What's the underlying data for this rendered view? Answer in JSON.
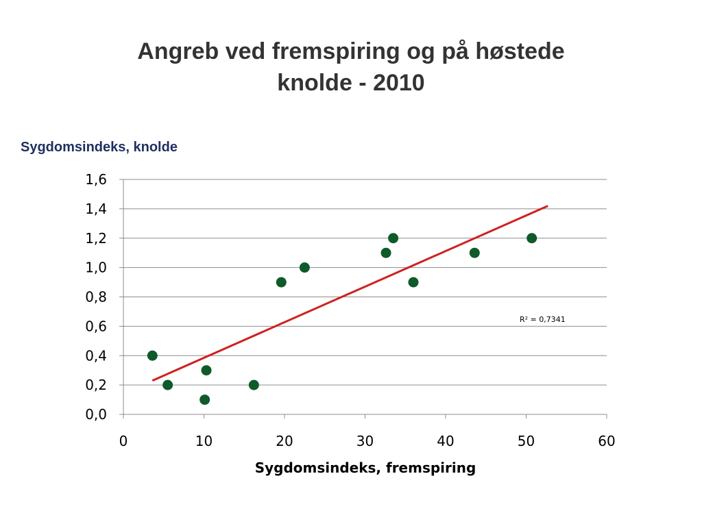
{
  "title": {
    "line1": "Angreb ved fremspiring og på høstede",
    "line2": "knolde  - 2010"
  },
  "chart_data": {
    "type": "scatter",
    "xlabel": "Sygdomsindeks, fremspiring",
    "ylabel": "Sygdomsindeks, knolde",
    "xlim": [
      0,
      60
    ],
    "ylim": [
      0,
      1.6
    ],
    "x_ticks": [
      0,
      10,
      20,
      30,
      40,
      50,
      60
    ],
    "x_tick_labels": [
      "0",
      "10",
      "20",
      "30",
      "40",
      "50",
      "60"
    ],
    "y_ticks": [
      0,
      0.2,
      0.4,
      0.6,
      0.8,
      1.0,
      1.2,
      1.4,
      1.6
    ],
    "y_tick_labels": [
      "0,0",
      "0,2",
      "0,4",
      "0,6",
      "0,8",
      "1,0",
      "1,2",
      "1,4",
      "1,6"
    ],
    "grid": "horizontal",
    "series": [
      {
        "color": "#0f5a2a",
        "points": [
          {
            "x": 3.6,
            "y": 0.4
          },
          {
            "x": 5.5,
            "y": 0.2
          },
          {
            "x": 10.1,
            "y": 0.1
          },
          {
            "x": 10.3,
            "y": 0.3
          },
          {
            "x": 16.2,
            "y": 0.2
          },
          {
            "x": 19.6,
            "y": 0.9
          },
          {
            "x": 22.5,
            "y": 1.0
          },
          {
            "x": 32.6,
            "y": 1.1
          },
          {
            "x": 33.5,
            "y": 1.2
          },
          {
            "x": 36.0,
            "y": 0.9
          },
          {
            "x": 43.6,
            "y": 1.1
          },
          {
            "x": 50.7,
            "y": 1.2
          }
        ]
      }
    ],
    "trendline": {
      "type": "linear",
      "color": "#d02020",
      "from": {
        "x": 3.6,
        "y": 0.23
      },
      "to": {
        "x": 52.7,
        "y": 1.42
      },
      "r2_label": "R² = 0,7341"
    }
  }
}
